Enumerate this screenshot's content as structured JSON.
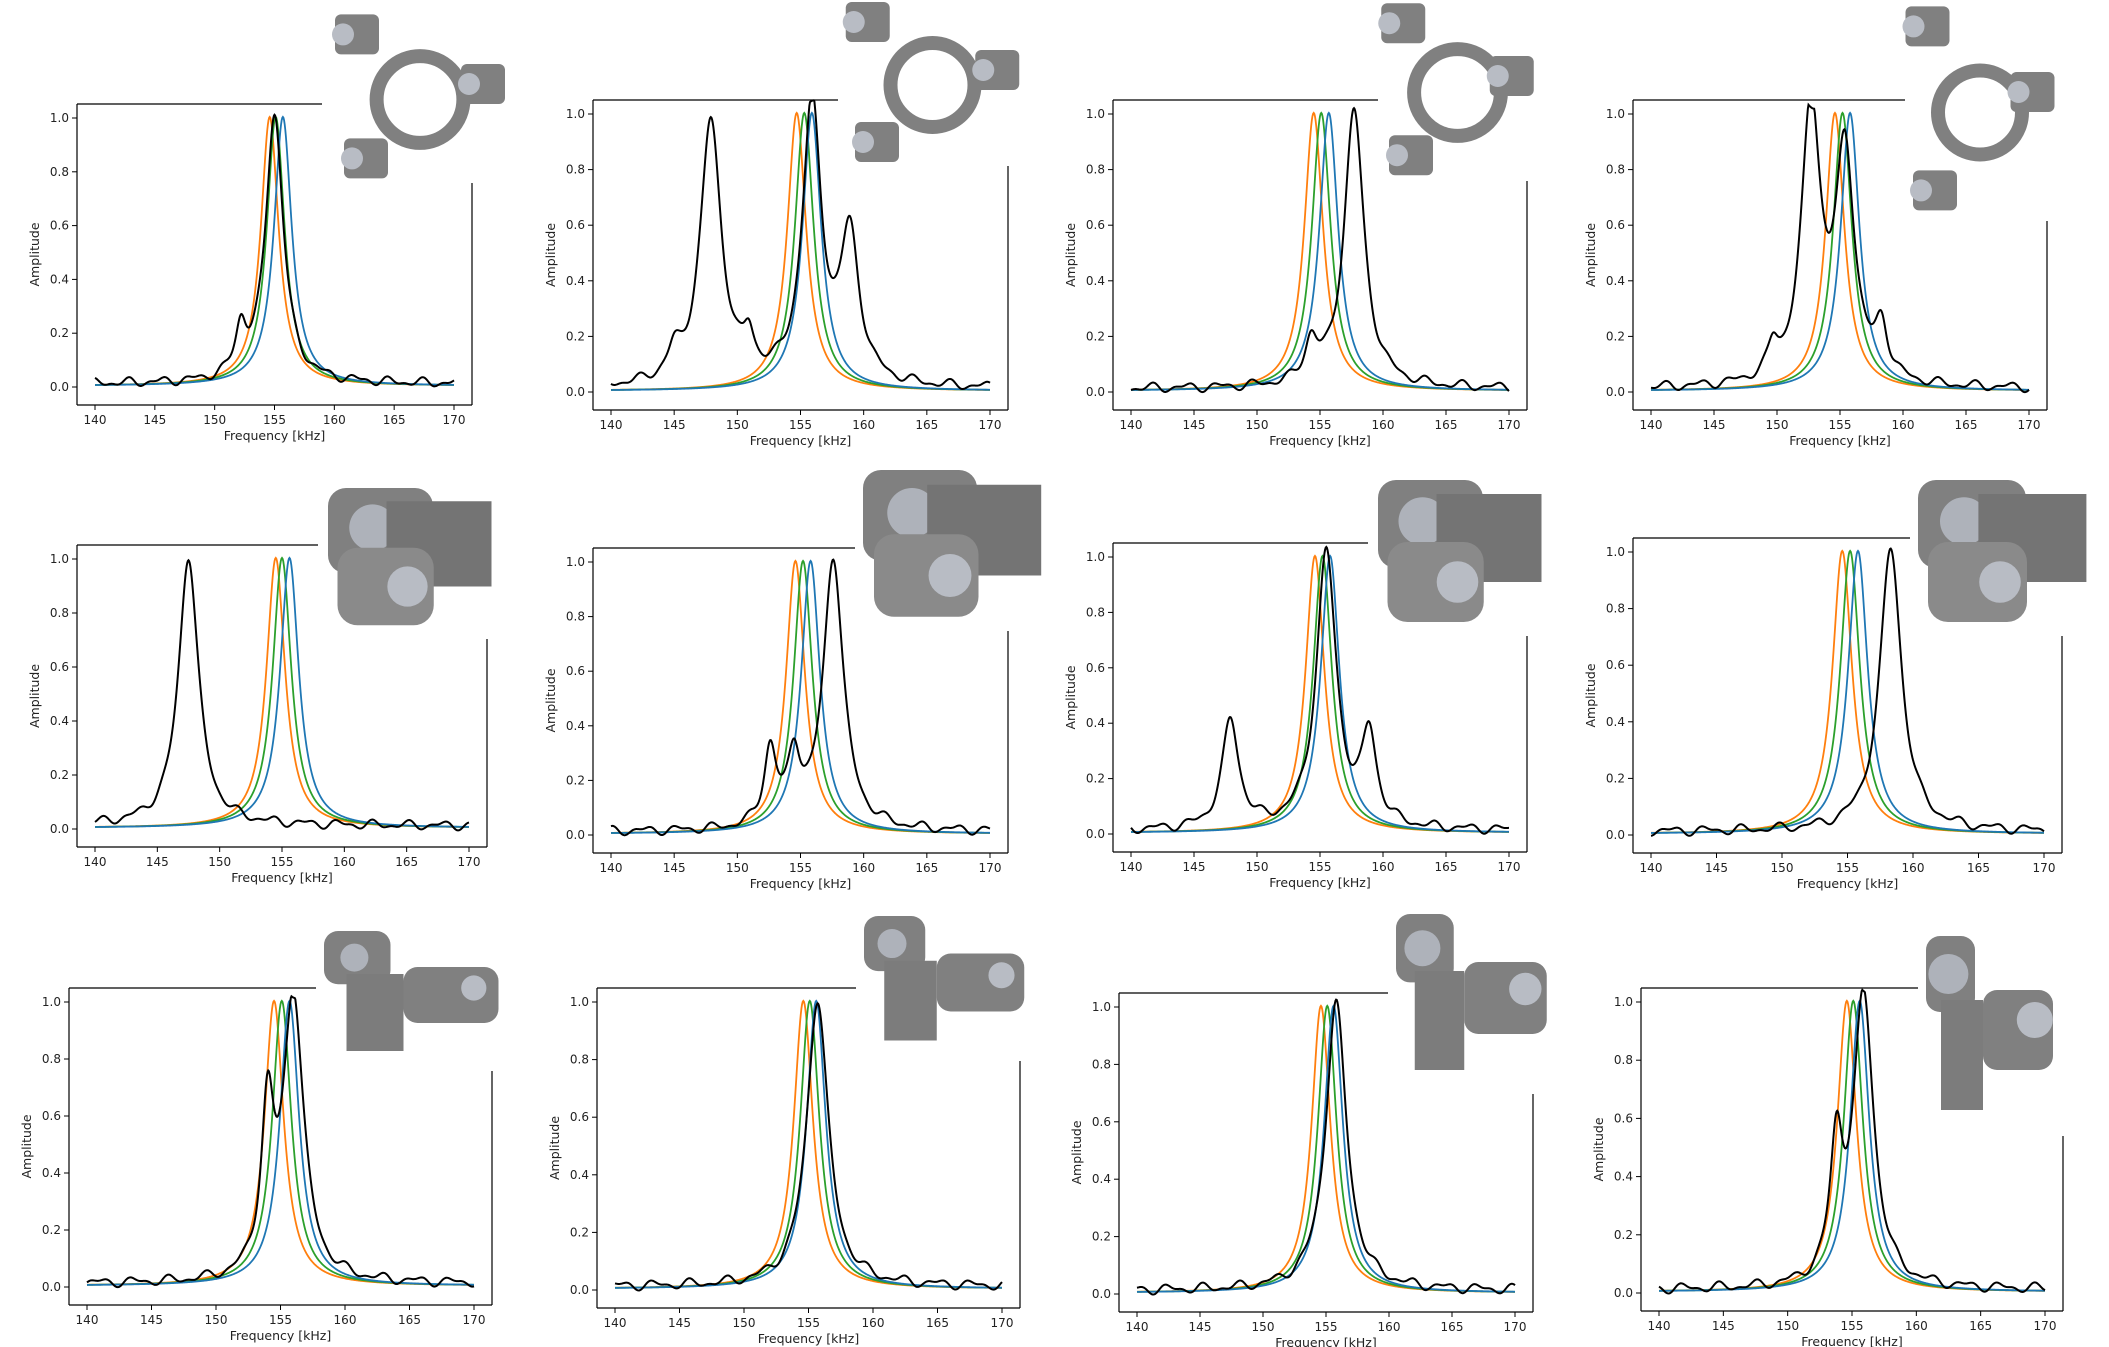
{
  "figure": {
    "xlabel": "Frequency [kHz]",
    "ylabel": "Amplitude",
    "xticks": [
      140,
      145,
      150,
      155,
      160,
      165,
      170
    ],
    "yticks": [
      0.0,
      0.2,
      0.4,
      0.6,
      0.8,
      1.0
    ],
    "xlim": [
      140,
      170
    ],
    "ylim": [
      0.0,
      1.0
    ],
    "series_colors": {
      "blue": "#1f77b4",
      "orange": "#ff7f0e",
      "green": "#2ca02c",
      "black": "#000000"
    },
    "shape_fill": "#808080"
  },
  "chart_data": [
    {
      "type": "line",
      "xlabel": "Frequency [kHz]",
      "ylabel": "Amplitude",
      "xlim": [
        140,
        170
      ],
      "ylim": [
        0,
        1
      ],
      "series": [
        {
          "color": "#ff7f0e",
          "peaks": [
            {
              "x": 154.6,
              "a": 1.0,
              "w": 0.9
            }
          ]
        },
        {
          "color": "#2ca02c",
          "peaks": [
            {
              "x": 155.1,
              "a": 1.0,
              "w": 0.9
            }
          ]
        },
        {
          "color": "#1f77b4",
          "peaks": [
            {
              "x": 155.7,
              "a": 1.0,
              "w": 0.9
            }
          ]
        },
        {
          "color": "#000000",
          "peaks": [
            {
              "x": 155.0,
              "a": 1.0,
              "w": 0.9
            },
            {
              "x": 152.2,
              "a": 0.17,
              "w": 0.55
            }
          ]
        }
      ],
      "shape": "ring3"
    },
    {
      "type": "line",
      "xlabel": "Frequency [kHz]",
      "ylabel": "Amplitude",
      "xlim": [
        140,
        170
      ],
      "ylim": [
        0,
        1
      ],
      "series": [
        {
          "color": "#ff7f0e",
          "peaks": [
            {
              "x": 154.7,
              "a": 1.0,
              "w": 0.9
            }
          ]
        },
        {
          "color": "#2ca02c",
          "peaks": [
            {
              "x": 155.3,
              "a": 1.0,
              "w": 0.9
            }
          ]
        },
        {
          "color": "#1f77b4",
          "peaks": [
            {
              "x": 155.9,
              "a": 1.0,
              "w": 0.9
            }
          ]
        },
        {
          "color": "#000000",
          "peaks": [
            {
              "x": 147.9,
              "a": 0.95,
              "w": 1.0
            },
            {
              "x": 155.9,
              "a": 1.0,
              "w": 0.9
            },
            {
              "x": 158.9,
              "a": 0.52,
              "w": 0.9
            },
            {
              "x": 150.9,
              "a": 0.12,
              "w": 0.5
            },
            {
              "x": 145.0,
              "a": 0.08,
              "w": 0.6
            }
          ]
        }
      ],
      "shape": "ring3"
    },
    {
      "type": "line",
      "xlabel": "Frequency [kHz]",
      "ylabel": "Amplitude",
      "xlim": [
        140,
        170
      ],
      "ylim": [
        0,
        1
      ],
      "series": [
        {
          "color": "#ff7f0e",
          "peaks": [
            {
              "x": 154.5,
              "a": 1.0,
              "w": 0.9
            }
          ]
        },
        {
          "color": "#2ca02c",
          "peaks": [
            {
              "x": 155.1,
              "a": 1.0,
              "w": 0.9
            }
          ]
        },
        {
          "color": "#1f77b4",
          "peaks": [
            {
              "x": 155.7,
              "a": 1.0,
              "w": 0.9
            }
          ]
        },
        {
          "color": "#000000",
          "peaks": [
            {
              "x": 157.7,
              "a": 1.0,
              "w": 0.95
            },
            {
              "x": 154.3,
              "a": 0.14,
              "w": 0.6
            }
          ]
        }
      ],
      "shape": "ring3"
    },
    {
      "type": "line",
      "xlabel": "Frequency [kHz]",
      "ylabel": "Amplitude",
      "xlim": [
        140,
        170
      ],
      "ylim": [
        0,
        1
      ],
      "series": [
        {
          "color": "#ff7f0e",
          "peaks": [
            {
              "x": 154.6,
              "a": 1.0,
              "w": 0.9
            }
          ]
        },
        {
          "color": "#2ca02c",
          "peaks": [
            {
              "x": 155.2,
              "a": 1.0,
              "w": 0.9
            }
          ]
        },
        {
          "color": "#1f77b4",
          "peaks": [
            {
              "x": 155.8,
              "a": 1.0,
              "w": 0.9
            }
          ]
        },
        {
          "color": "#000000",
          "peaks": [
            {
              "x": 152.7,
              "a": 1.0,
              "w": 0.9
            },
            {
              "x": 155.4,
              "a": 0.82,
              "w": 0.9
            },
            {
              "x": 158.3,
              "a": 0.18,
              "w": 0.6
            },
            {
              "x": 149.7,
              "a": 0.1,
              "w": 0.5
            }
          ]
        }
      ],
      "shape": "ring3"
    },
    {
      "type": "line",
      "xlabel": "Frequency [kHz]",
      "ylabel": "Amplitude",
      "xlim": [
        140,
        170
      ],
      "ylim": [
        0,
        1
      ],
      "series": [
        {
          "color": "#ff7f0e",
          "peaks": [
            {
              "x": 154.5,
              "a": 1.0,
              "w": 0.9
            }
          ]
        },
        {
          "color": "#2ca02c",
          "peaks": [
            {
              "x": 155.0,
              "a": 1.0,
              "w": 0.9
            }
          ]
        },
        {
          "color": "#1f77b4",
          "peaks": [
            {
              "x": 155.6,
              "a": 1.0,
              "w": 0.9
            }
          ]
        },
        {
          "color": "#000000",
          "peaks": [
            {
              "x": 147.5,
              "a": 1.0,
              "w": 0.95
            }
          ]
        }
      ],
      "shape": "blocks"
    },
    {
      "type": "line",
      "xlabel": "Frequency [kHz]",
      "ylabel": "Amplitude",
      "xlim": [
        140,
        170
      ],
      "ylim": [
        0,
        1
      ],
      "series": [
        {
          "color": "#ff7f0e",
          "peaks": [
            {
              "x": 154.6,
              "a": 1.0,
              "w": 0.9
            }
          ]
        },
        {
          "color": "#2ca02c",
          "peaks": [
            {
              "x": 155.2,
              "a": 1.0,
              "w": 0.9
            }
          ]
        },
        {
          "color": "#1f77b4",
          "peaks": [
            {
              "x": 155.8,
              "a": 1.0,
              "w": 0.9
            }
          ]
        },
        {
          "color": "#000000",
          "peaks": [
            {
              "x": 157.6,
              "a": 1.0,
              "w": 0.95
            },
            {
              "x": 152.6,
              "a": 0.28,
              "w": 0.6
            },
            {
              "x": 154.5,
              "a": 0.24,
              "w": 0.6
            }
          ]
        }
      ],
      "shape": "blocks"
    },
    {
      "type": "line",
      "xlabel": "Frequency [kHz]",
      "ylabel": "Amplitude",
      "xlim": [
        140,
        170
      ],
      "ylim": [
        0,
        1
      ],
      "series": [
        {
          "color": "#ff7f0e",
          "peaks": [
            {
              "x": 154.6,
              "a": 1.0,
              "w": 0.9
            }
          ]
        },
        {
          "color": "#2ca02c",
          "peaks": [
            {
              "x": 155.2,
              "a": 1.0,
              "w": 0.9
            }
          ]
        },
        {
          "color": "#1f77b4",
          "peaks": [
            {
              "x": 155.8,
              "a": 1.0,
              "w": 0.9
            }
          ]
        },
        {
          "color": "#000000",
          "peaks": [
            {
              "x": 155.5,
              "a": 1.0,
              "w": 0.95
            },
            {
              "x": 147.9,
              "a": 0.39,
              "w": 0.8
            },
            {
              "x": 158.9,
              "a": 0.32,
              "w": 0.7
            }
          ]
        }
      ],
      "shape": "blocks"
    },
    {
      "type": "line",
      "xlabel": "Frequency [kHz]",
      "ylabel": "Amplitude",
      "xlim": [
        140,
        170
      ],
      "ylim": [
        0,
        1
      ],
      "series": [
        {
          "color": "#ff7f0e",
          "peaks": [
            {
              "x": 154.6,
              "a": 1.0,
              "w": 0.9
            }
          ]
        },
        {
          "color": "#2ca02c",
          "peaks": [
            {
              "x": 155.2,
              "a": 1.0,
              "w": 0.9
            }
          ]
        },
        {
          "color": "#1f77b4",
          "peaks": [
            {
              "x": 155.8,
              "a": 1.0,
              "w": 0.9
            }
          ]
        },
        {
          "color": "#000000",
          "peaks": [
            {
              "x": 158.3,
              "a": 1.0,
              "w": 1.0
            }
          ]
        }
      ],
      "shape": "blocks"
    },
    {
      "type": "line",
      "xlabel": "Frequency [kHz]",
      "ylabel": "Amplitude",
      "xlim": [
        140,
        170
      ],
      "ylim": [
        0,
        1
      ],
      "series": [
        {
          "color": "#ff7f0e",
          "peaks": [
            {
              "x": 154.5,
              "a": 1.0,
              "w": 0.9
            }
          ]
        },
        {
          "color": "#2ca02c",
          "peaks": [
            {
              "x": 155.1,
              "a": 1.0,
              "w": 0.9
            }
          ]
        },
        {
          "color": "#1f77b4",
          "peaks": [
            {
              "x": 155.7,
              "a": 1.0,
              "w": 0.9
            }
          ]
        },
        {
          "color": "#000000",
          "peaks": [
            {
              "x": 156.0,
              "a": 1.0,
              "w": 0.95
            },
            {
              "x": 154.0,
              "a": 0.55,
              "w": 0.6
            }
          ]
        }
      ],
      "shape": "chain"
    },
    {
      "type": "line",
      "xlabel": "Frequency [kHz]",
      "ylabel": "Amplitude",
      "xlim": [
        140,
        170
      ],
      "ylim": [
        0,
        1
      ],
      "series": [
        {
          "color": "#ff7f0e",
          "peaks": [
            {
              "x": 154.6,
              "a": 1.0,
              "w": 0.9
            }
          ]
        },
        {
          "color": "#2ca02c",
          "peaks": [
            {
              "x": 155.1,
              "a": 1.0,
              "w": 0.9
            }
          ]
        },
        {
          "color": "#1f77b4",
          "peaks": [
            {
              "x": 155.6,
              "a": 1.0,
              "w": 0.9
            }
          ]
        },
        {
          "color": "#000000",
          "peaks": [
            {
              "x": 155.7,
              "a": 1.0,
              "w": 1.0
            }
          ]
        }
      ],
      "shape": "chain"
    },
    {
      "type": "line",
      "xlabel": "Frequency [kHz]",
      "ylabel": "Amplitude",
      "xlim": [
        140,
        170
      ],
      "ylim": [
        0,
        1
      ],
      "series": [
        {
          "color": "#ff7f0e",
          "peaks": [
            {
              "x": 154.6,
              "a": 1.0,
              "w": 0.9
            }
          ]
        },
        {
          "color": "#2ca02c",
          "peaks": [
            {
              "x": 155.1,
              "a": 1.0,
              "w": 0.9
            }
          ]
        },
        {
          "color": "#1f77b4",
          "peaks": [
            {
              "x": 155.6,
              "a": 1.0,
              "w": 0.9
            }
          ]
        },
        {
          "color": "#000000",
          "peaks": [
            {
              "x": 155.8,
              "a": 1.0,
              "w": 1.0
            }
          ]
        }
      ],
      "shape": "chain"
    },
    {
      "type": "line",
      "xlabel": "Frequency [kHz]",
      "ylabel": "Amplitude",
      "xlim": [
        140,
        170
      ],
      "ylim": [
        0,
        1
      ],
      "series": [
        {
          "color": "#ff7f0e",
          "peaks": [
            {
              "x": 154.6,
              "a": 1.0,
              "w": 0.9
            }
          ]
        },
        {
          "color": "#2ca02c",
          "peaks": [
            {
              "x": 155.1,
              "a": 1.0,
              "w": 0.9
            }
          ]
        },
        {
          "color": "#1f77b4",
          "peaks": [
            {
              "x": 155.6,
              "a": 1.0,
              "w": 0.9
            }
          ]
        },
        {
          "color": "#000000",
          "peaks": [
            {
              "x": 155.9,
              "a": 1.0,
              "w": 0.95
            },
            {
              "x": 153.8,
              "a": 0.44,
              "w": 0.6
            }
          ]
        }
      ],
      "shape": "chain"
    }
  ]
}
